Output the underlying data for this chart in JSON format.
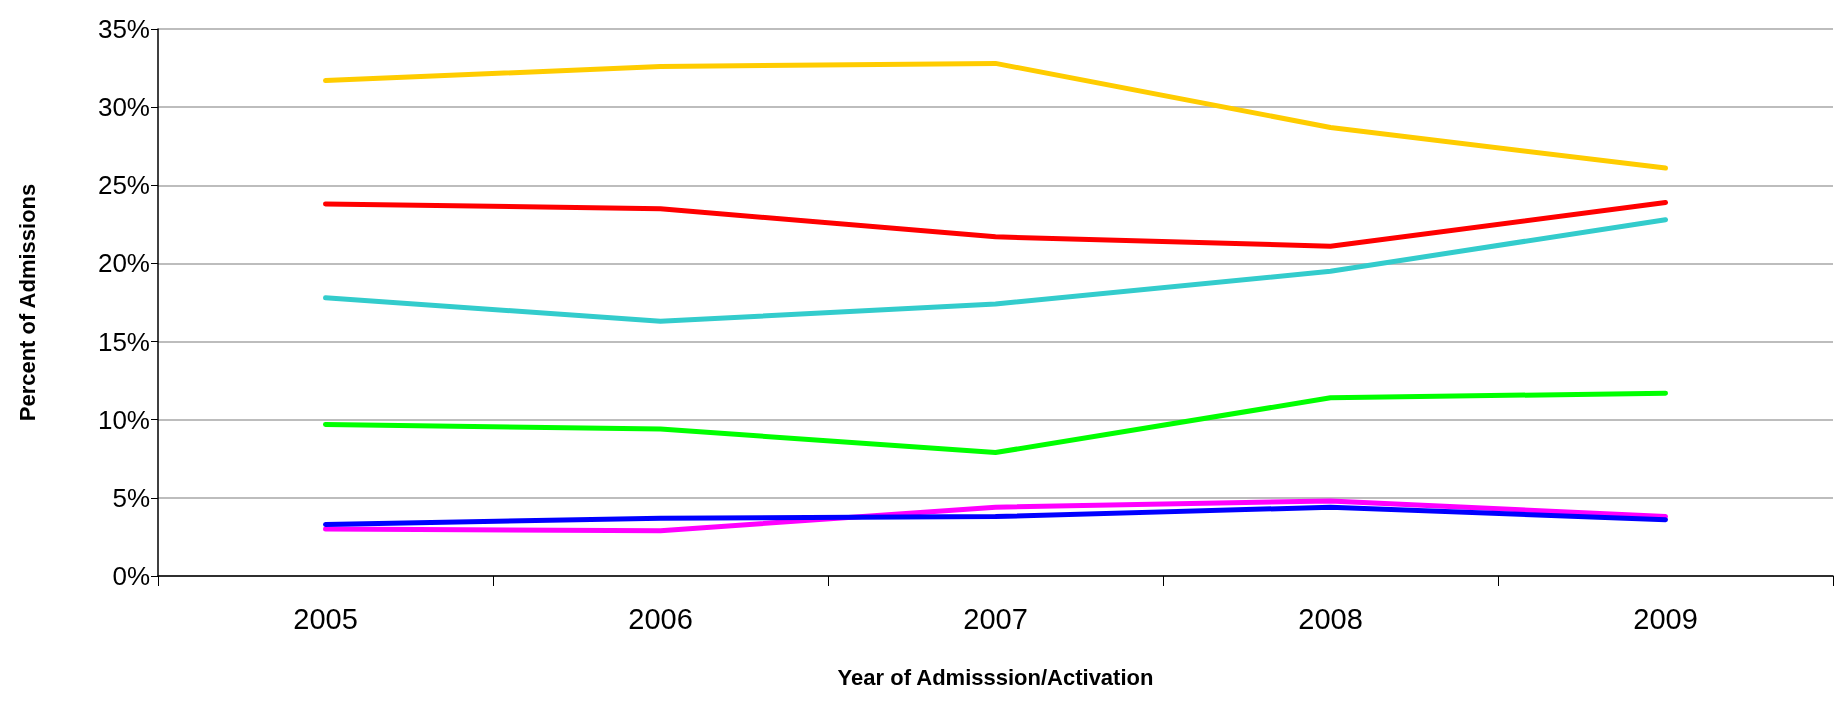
{
  "chart_data": {
    "type": "line",
    "xlabel": "Year of Admisssion/Activation",
    "ylabel": "Percent of Admissions",
    "categories": [
      "2005",
      "2006",
      "2007",
      "2008",
      "2009"
    ],
    "series": [
      {
        "color": "#ffcc00",
        "values": [
          31.7,
          32.6,
          32.8,
          28.7,
          26.1
        ]
      },
      {
        "color": "#ff0000",
        "values": [
          23.8,
          23.5,
          21.7,
          21.1,
          23.9
        ]
      },
      {
        "color": "#33cccc",
        "values": [
          17.8,
          16.3,
          17.4,
          19.5,
          22.8
        ]
      },
      {
        "color": "#00ff00",
        "values": [
          9.7,
          9.4,
          7.9,
          11.4,
          11.7
        ]
      },
      {
        "color": "#ff00ff",
        "values": [
          3.0,
          2.9,
          4.4,
          4.8,
          3.8
        ]
      },
      {
        "color": "#0000ff",
        "values": [
          3.3,
          3.7,
          3.8,
          4.4,
          3.6
        ]
      }
    ],
    "ylim": [
      0,
      35
    ],
    "yticks": [
      {
        "value": 0,
        "label": "0%"
      },
      {
        "value": 5,
        "label": "5%"
      },
      {
        "value": 10,
        "label": "10%"
      },
      {
        "value": 15,
        "label": "15%"
      },
      {
        "value": 20,
        "label": "20%"
      },
      {
        "value": 25,
        "label": "25%"
      },
      {
        "value": 30,
        "label": "30%"
      },
      {
        "value": 35,
        "label": "35%"
      }
    ],
    "grid": "y",
    "marker": "none",
    "line_style": "solid"
  }
}
